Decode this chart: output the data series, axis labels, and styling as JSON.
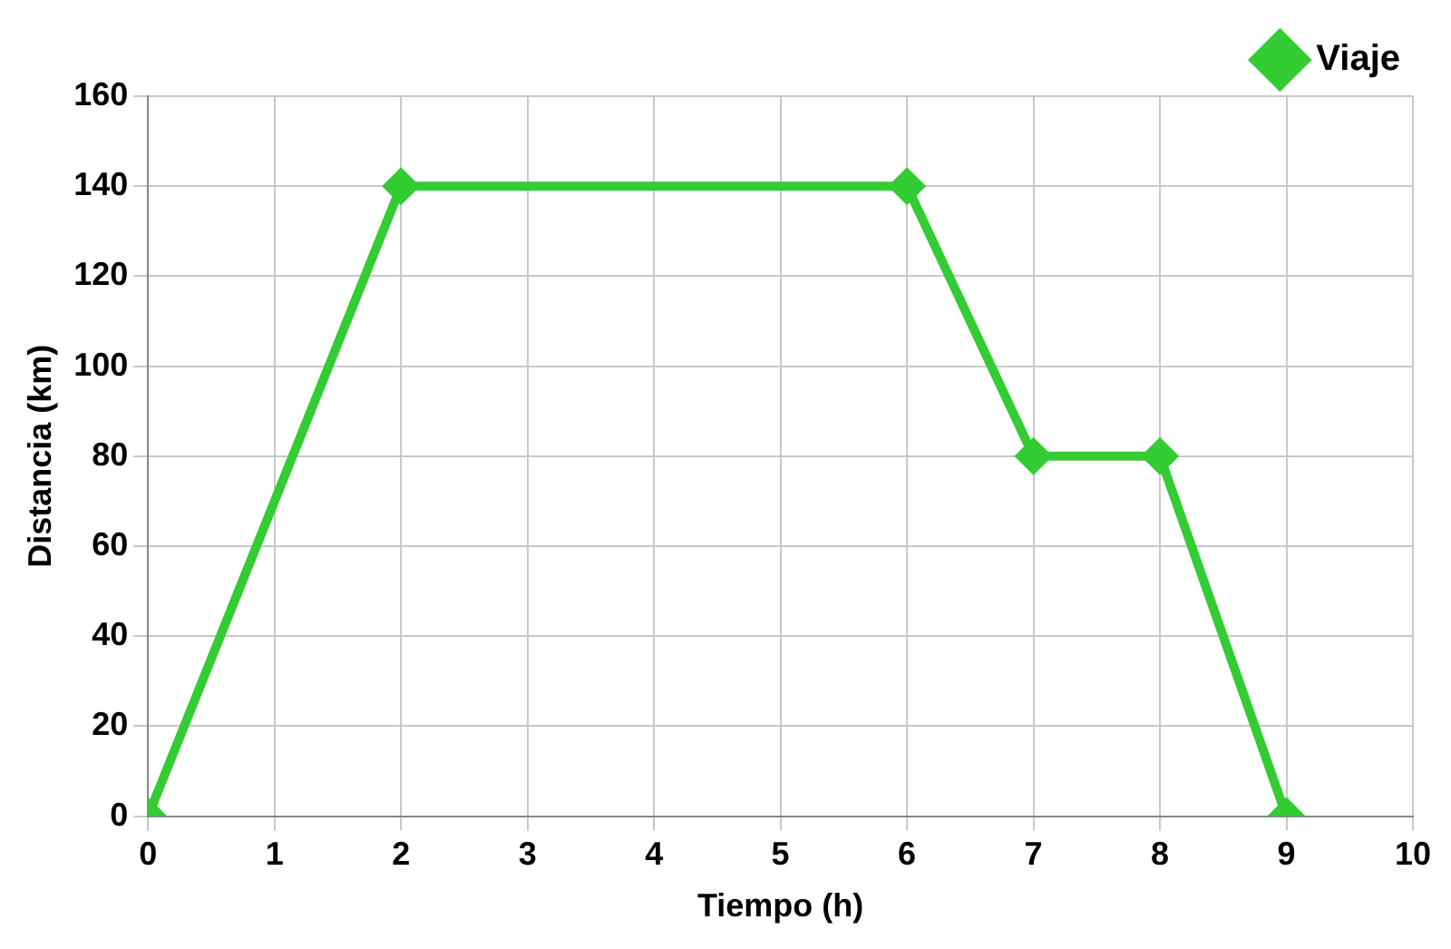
{
  "chart_data": {
    "type": "line",
    "xlabel": "Tiempo (h)",
    "ylabel": "Distancia (km)",
    "x": [
      0,
      2,
      6,
      7,
      8,
      9
    ],
    "series": [
      {
        "name": "Viaje",
        "color": "#33cc33",
        "values": [
          0,
          140,
          140,
          80,
          80,
          0
        ]
      }
    ],
    "xlim": [
      0,
      10
    ],
    "xticks": [
      0,
      1,
      2,
      3,
      4,
      5,
      6,
      7,
      8,
      9,
      10
    ],
    "ylim": [
      0,
      160
    ],
    "yticks": [
      0,
      20,
      40,
      60,
      80,
      100,
      120,
      140,
      160
    ],
    "grid": true,
    "legend": "top right",
    "marker": "diamond",
    "line_style": "solid"
  }
}
